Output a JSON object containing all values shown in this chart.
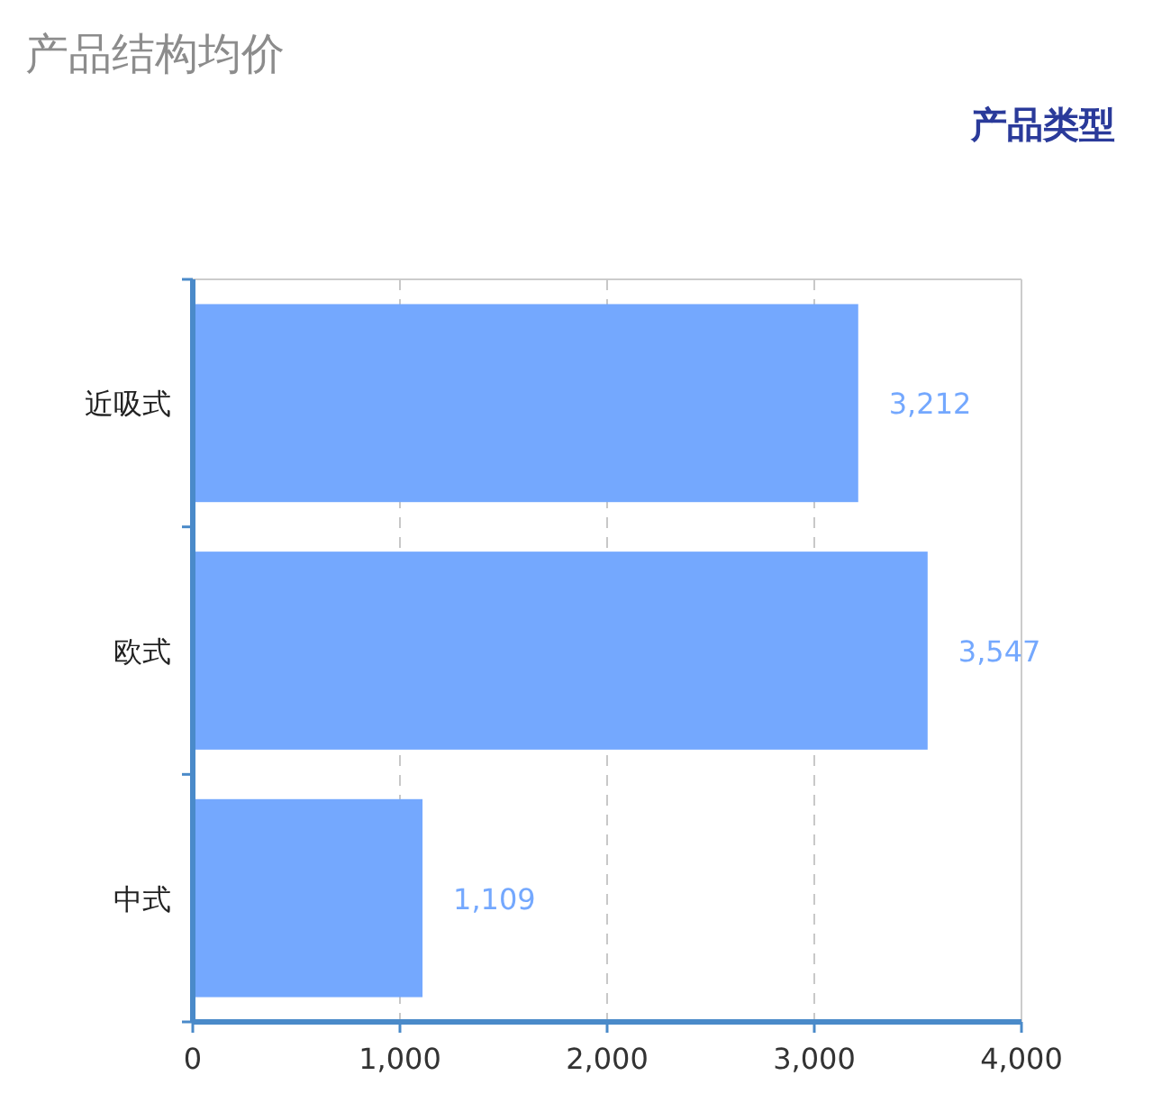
{
  "chart_data": {
    "type": "bar",
    "orientation": "horizontal",
    "title": "产品结构均价",
    "ylabel": "产品类型",
    "categories": [
      "近吸式",
      "欧式",
      "中式"
    ],
    "values": [
      3212,
      3547,
      1109
    ],
    "value_labels": [
      "3,212",
      "3,547",
      "1,109"
    ],
    "color": "#74a8fe",
    "xlim": [
      0,
      4000
    ],
    "xticks": [
      0,
      {
        "value": 1000,
        "label": "1,000"
      },
      {
        "value": 2000,
        "label": "2,000"
      },
      {
        "value": 3000,
        "label": "3,000"
      },
      {
        "value": 4000,
        "label": "4,000"
      }
    ],
    "grid": "x"
  }
}
